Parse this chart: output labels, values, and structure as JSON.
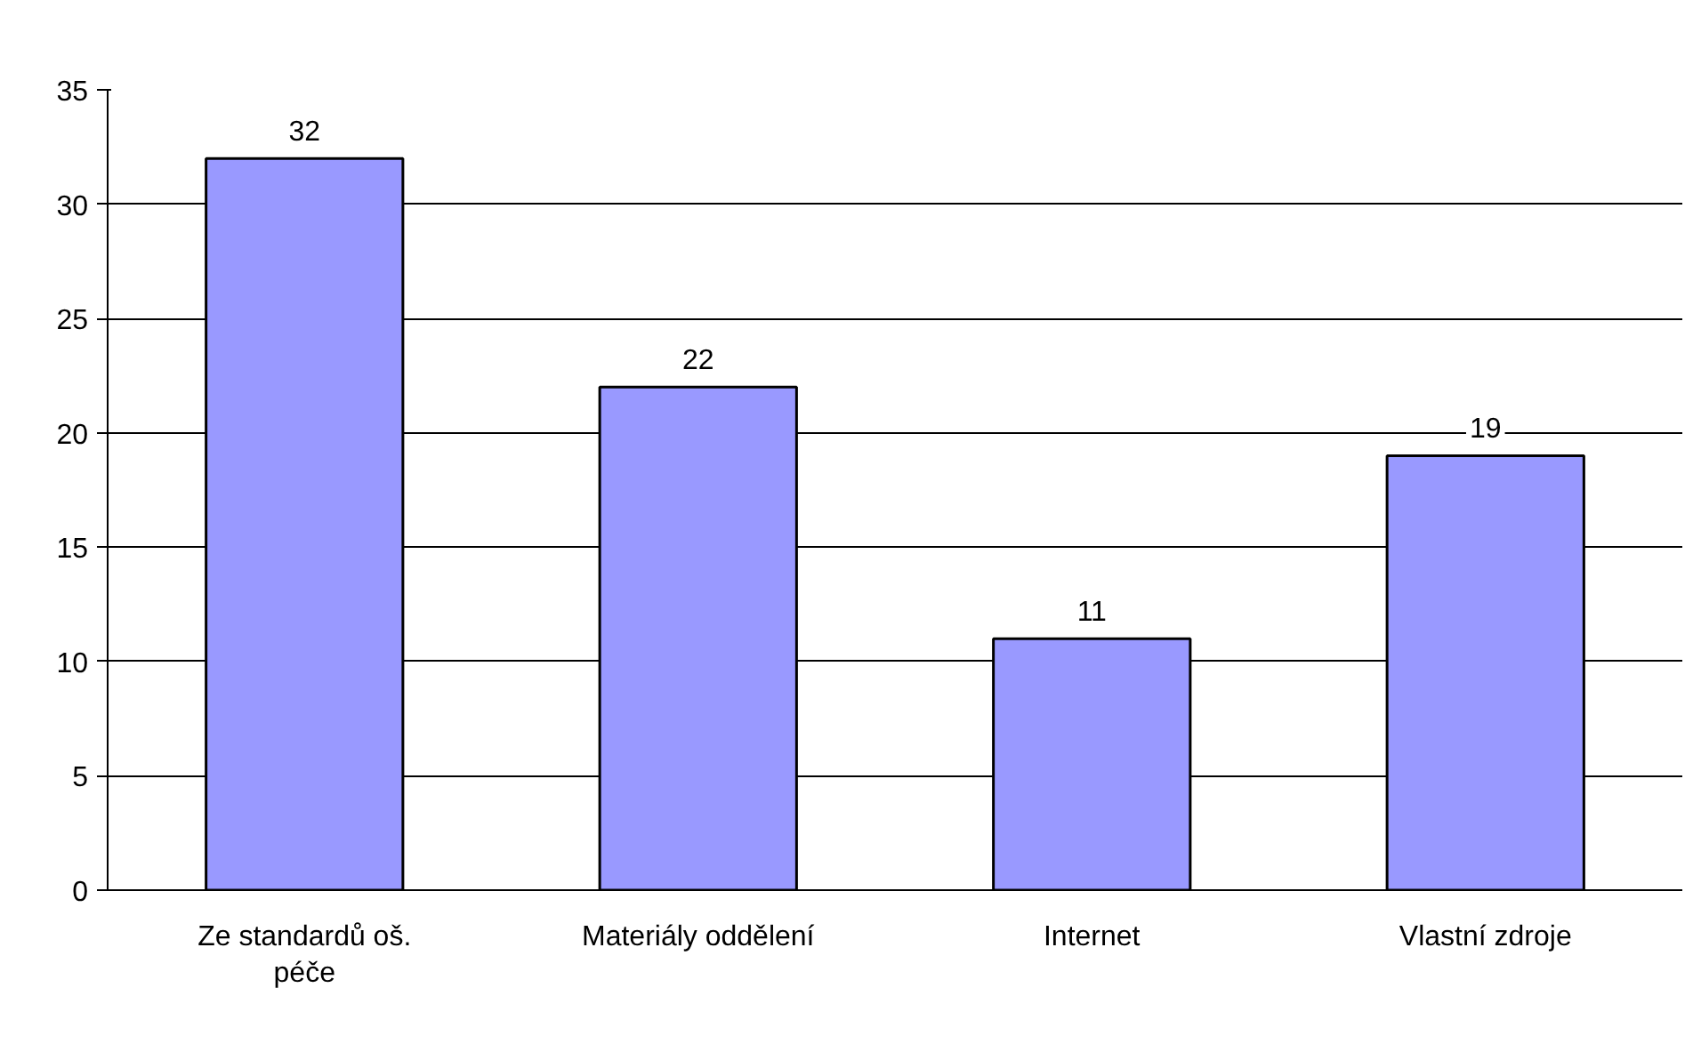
{
  "chart_data": {
    "type": "bar",
    "categories": [
      "Ze standardů oš. péče",
      "Materiály oddělení",
      "Internet",
      "Vlastní zdroje"
    ],
    "values": [
      32,
      22,
      11,
      19
    ],
    "color": "#9999ff",
    "ylim": [
      0,
      35
    ],
    "yticks": [
      0,
      5,
      10,
      15,
      20,
      25,
      30,
      35
    ],
    "grid": "y",
    "data_labels": true
  }
}
